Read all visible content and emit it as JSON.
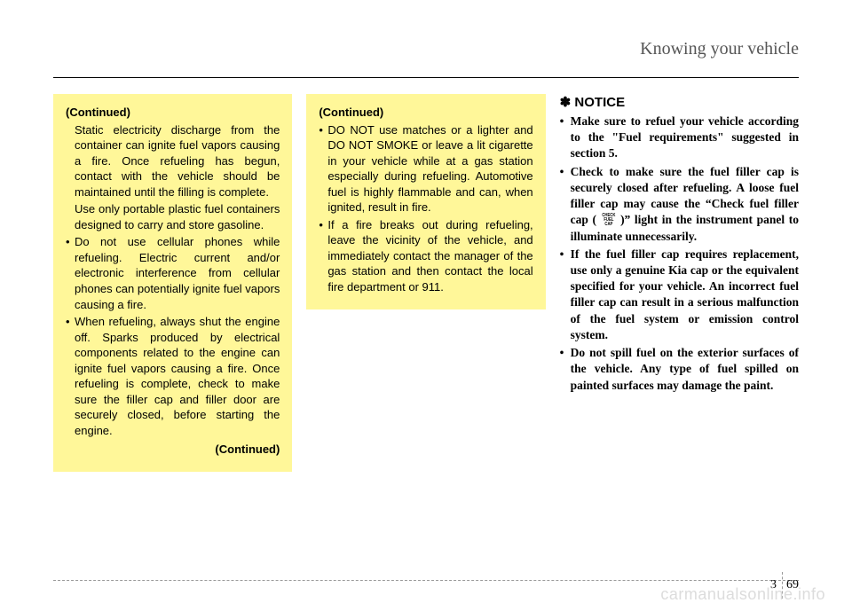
{
  "header": {
    "title": "Knowing your vehicle"
  },
  "col1": {
    "continued": "(Continued)",
    "p1": "Static electricity discharge from the container can ignite fuel vapors causing a fire.  Once refueling has begun, contact with the vehicle should be maintained until the filling is complete.",
    "p2": "Use only portable plastic fuel containers designed to carry and store gasoline.",
    "b1": "Do not use cellular phones while refueling. Electric current and/or electronic interference from cellular phones can potentially ignite fuel vapors causing a fire.",
    "b2": "When refueling, always shut the engine off.  Sparks produced by electrical components related to the engine can ignite fuel vapors causing a fire. Once refueling is complete, check to make sure the filler cap and filler door are securely closed, before starting the engine.",
    "continued_end": "(Continued)"
  },
  "col2": {
    "continued": "(Continued)",
    "b1": "DO NOT use matches or a lighter and DO NOT SMOKE or leave a lit cigarette in your vehicle while at a gas station especially during refueling. Automotive fuel is highly flammable and can, when ignited, result in fire.",
    "b2": "If a fire breaks out during refueling, leave the vicinity of the vehicle, and immediately contact the manager of the gas station and then contact the local fire department or 911."
  },
  "col3": {
    "notice": "NOTICE",
    "b1": "Make sure to refuel your vehicle according to the \"Fuel requirements\" suggested in section 5.",
    "b2a": "Check to make sure the fuel filler cap is securely closed after refueling. A loose fuel filler cap may cause the “Check fuel filler cap (",
    "icon": {
      "l1": "CHECK",
      "l2": "FUEL",
      "l3": "CAP"
    },
    "b2b": ")” light in the instrument panel to illuminate unnecessarily.",
    "b3": "If the fuel filler cap requires replacement, use only a genuine Kia cap or the equivalent specified for your vehicle. An incorrect fuel filler cap can result in a serious malfunction of the fuel system or emission control system.",
    "b4": "Do not spill fuel on the exterior surfaces of the vehicle. Any type of fuel spilled on painted surfaces may damage the paint."
  },
  "footer": {
    "section": "3",
    "page": "69"
  },
  "watermark": "carmanualsonline.info"
}
